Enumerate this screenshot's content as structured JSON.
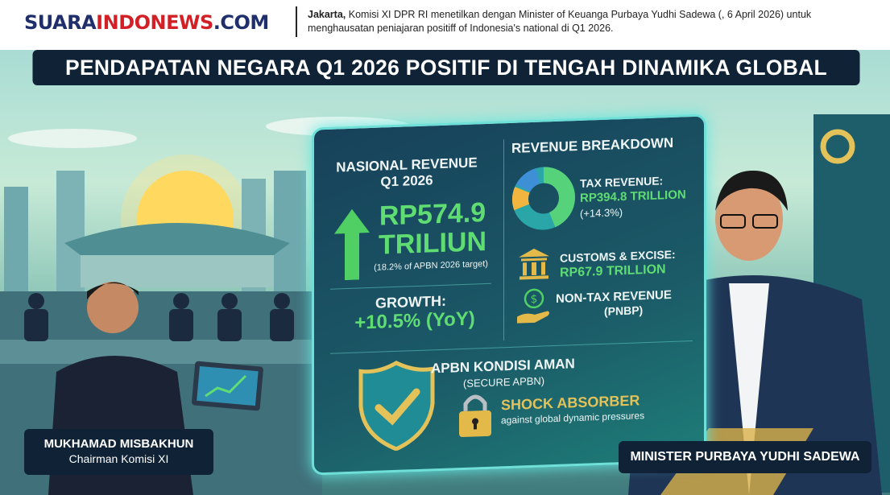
{
  "header": {
    "logo_main": "SUARA",
    "logo_accent": "INDONEWS",
    "logo_tld": ".COM",
    "lead_dateline": "Jakarta,",
    "lead_text": " Komisi XI DPR RI menetilkan dengan Minister of Keuanga Purbaya Yudhi Sadewa (, 6 April 2026) untuk menghausatan peniajaran positiff of Indonesia's national di Q1 2026."
  },
  "headline": "PENDAPATAN NEGARA Q1 2026 POSITIF DI TENGAH DINAMIKA GLOBAL",
  "panel": {
    "national": {
      "title": "NASIONAL REVENUE Q1 2026",
      "value": "RP574.9 TRILIUN",
      "note": "(18.2% of APBN 2026 target)",
      "growth_label": "GROWTH:",
      "growth_value": "+10.5% (YoY)"
    },
    "breakdown": {
      "title": "REVENUE BREAKDOWN",
      "tax_label": "TAX REVENUE:",
      "tax_value": "RP394.8 TRILLION",
      "tax_change": "(+14.3%)",
      "customs_label": "CUSTOMS & EXCISE:",
      "customs_value": "RP67.9 TRILLION",
      "nontax_label": "NON-TAX REVENUE",
      "nontax_sub": "(PNBP)"
    },
    "security": {
      "title": "APBN KONDISI AMAN",
      "subtitle": "(SECURE APBN)",
      "shock_title": "SHOCK ABSORBER",
      "shock_text": "against global dynamic pressures"
    }
  },
  "captions": {
    "left_name": "MUKHAMAD MISBAKHUN",
    "left_role": "Chairman Komisi XI",
    "right": "MINISTER PURBAYA YUDHI SADEWA"
  },
  "colors": {
    "navy": "#0f2236",
    "green": "#5fdc72",
    "gold": "#e3c25a",
    "logo_blue": "#1f2f6b",
    "logo_red": "#d32027",
    "panel_glow": "#6fe0d8"
  },
  "icons": [
    "arrow-up-icon",
    "donut-chart-icon",
    "bank-building-icon",
    "money-hand-icon",
    "shield-check-icon",
    "padlock-icon",
    "laptop-chart-icon"
  ]
}
